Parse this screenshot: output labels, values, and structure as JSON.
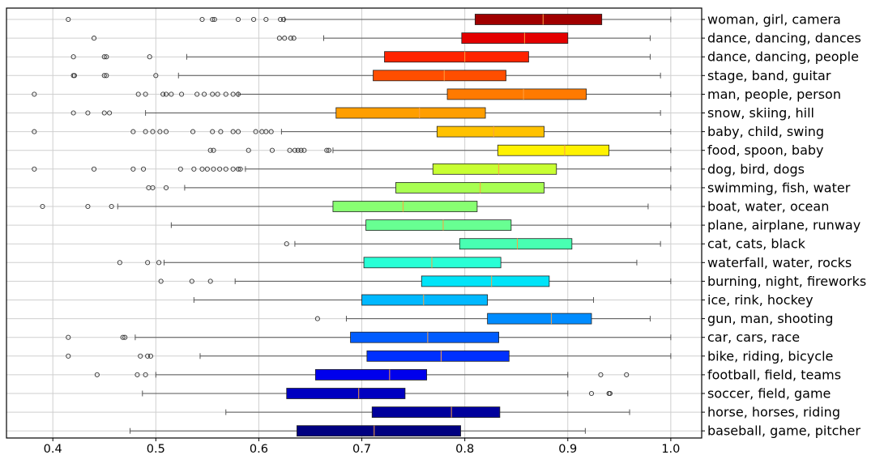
{
  "chart_data": {
    "type": "boxplot",
    "orientation": "horizontal",
    "xlim": [
      0.355,
      1.03
    ],
    "x_ticks": [
      0.4,
      0.5,
      0.6,
      0.7,
      0.8,
      0.9,
      1.0
    ],
    "x_tick_labels": [
      "0.4",
      "0.5",
      "0.6",
      "0.7",
      "0.8",
      "0.9",
      "1.0"
    ],
    "grid": true,
    "category_axis_side": "right",
    "categories": [
      "woman, girl, camera",
      "dance, dancing, dances",
      "dance, dancing, people",
      "stage, band, guitar",
      "man, people, person",
      "snow, skiing, hill",
      "baby, child, swing",
      "food, spoon, baby",
      "dog, bird, dogs",
      "swimming, fish, water",
      "boat, water, ocean",
      "plane, airplane, runway",
      "cat, cats, black",
      "waterfall, water, rocks",
      "burning, night, fireworks",
      "ice, rink, hockey",
      "gun, man, shooting",
      "car, cars, race",
      "bike, riding, bicycle",
      "football, field, teams",
      "soccer, field, game",
      "horse, horses, riding",
      "baseball, game, pitcher"
    ],
    "series": [
      {
        "whislo": 0.625,
        "q1": 0.81,
        "med": 0.876,
        "q3": 0.933,
        "whishi": 1.0,
        "color": "#a00000",
        "fliers": [
          0.415,
          0.545,
          0.555,
          0.557,
          0.58,
          0.595,
          0.607,
          0.621,
          0.624
        ]
      },
      {
        "whislo": 0.663,
        "q1": 0.797,
        "med": 0.858,
        "q3": 0.9,
        "whishi": 0.98,
        "color": "#e30000",
        "fliers": [
          0.44,
          0.62,
          0.625,
          0.631,
          0.634
        ]
      },
      {
        "whislo": 0.53,
        "q1": 0.722,
        "med": 0.8,
        "q3": 0.862,
        "whishi": 0.98,
        "color": "#ff2400",
        "fliers": [
          0.42,
          0.45,
          0.452,
          0.494
        ]
      },
      {
        "whislo": 0.522,
        "q1": 0.711,
        "med": 0.78,
        "q3": 0.84,
        "whishi": 0.99,
        "color": "#ff4e00",
        "fliers": [
          0.42,
          0.421,
          0.45,
          0.452,
          0.5
        ]
      },
      {
        "whislo": 0.58,
        "q1": 0.783,
        "med": 0.857,
        "q3": 0.918,
        "whishi": 1.0,
        "color": "#ff7a00",
        "fliers": [
          0.382,
          0.483,
          0.49,
          0.507,
          0.51,
          0.515,
          0.525,
          0.54,
          0.547,
          0.555,
          0.56,
          0.568,
          0.575,
          0.58
        ]
      },
      {
        "whislo": 0.49,
        "q1": 0.675,
        "med": 0.756,
        "q3": 0.82,
        "whishi": 0.99,
        "color": "#ff9e00",
        "fliers": [
          0.42,
          0.434,
          0.45,
          0.455
        ]
      },
      {
        "whislo": 0.622,
        "q1": 0.773,
        "med": 0.828,
        "q3": 0.877,
        "whishi": 1.0,
        "color": "#ffc200",
        "fliers": [
          0.382,
          0.478,
          0.49,
          0.497,
          0.504,
          0.51,
          0.536,
          0.555,
          0.563,
          0.575,
          0.58,
          0.597,
          0.603,
          0.607,
          0.612
        ]
      },
      {
        "whislo": 0.672,
        "q1": 0.832,
        "med": 0.897,
        "q3": 0.94,
        "whishi": 1.0,
        "color": "#fff200",
        "fliers": [
          0.553,
          0.556,
          0.59,
          0.613,
          0.63,
          0.635,
          0.638,
          0.641,
          0.644,
          0.666,
          0.668
        ]
      },
      {
        "whislo": 0.587,
        "q1": 0.769,
        "med": 0.833,
        "q3": 0.889,
        "whishi": 1.0,
        "color": "#c8ff32",
        "fliers": [
          0.382,
          0.44,
          0.478,
          0.488,
          0.524,
          0.537,
          0.545,
          0.55,
          0.556,
          0.562,
          0.568,
          0.575,
          0.58,
          0.582
        ]
      },
      {
        "whislo": 0.528,
        "q1": 0.733,
        "med": 0.815,
        "q3": 0.877,
        "whishi": 1.0,
        "color": "#a8ff52",
        "fliers": [
          0.493,
          0.497,
          0.51
        ]
      },
      {
        "whislo": 0.463,
        "q1": 0.672,
        "med": 0.74,
        "q3": 0.812,
        "whishi": 0.978,
        "color": "#88ff72",
        "fliers": [
          0.39,
          0.434,
          0.457
        ]
      },
      {
        "whislo": 0.515,
        "q1": 0.704,
        "med": 0.779,
        "q3": 0.845,
        "whishi": 1.0,
        "color": "#68ff92",
        "fliers": []
      },
      {
        "whislo": 0.635,
        "q1": 0.795,
        "med": 0.851,
        "q3": 0.904,
        "whishi": 0.99,
        "color": "#48ffb2",
        "fliers": [
          0.627
        ]
      },
      {
        "whislo": 0.508,
        "q1": 0.702,
        "med": 0.768,
        "q3": 0.835,
        "whishi": 0.967,
        "color": "#28ffd6",
        "fliers": [
          0.465,
          0.492,
          0.503
        ]
      },
      {
        "whislo": 0.577,
        "q1": 0.758,
        "med": 0.826,
        "q3": 0.882,
        "whishi": 1.0,
        "color": "#00e4f8",
        "fliers": [
          0.505,
          0.535,
          0.553
        ]
      },
      {
        "whislo": 0.537,
        "q1": 0.7,
        "med": 0.76,
        "q3": 0.822,
        "whishi": 0.925,
        "color": "#00b8ff",
        "fliers": []
      },
      {
        "whislo": 0.685,
        "q1": 0.822,
        "med": 0.884,
        "q3": 0.923,
        "whishi": 0.98,
        "color": "#008cff",
        "fliers": [
          0.657
        ]
      },
      {
        "whislo": 0.48,
        "q1": 0.689,
        "med": 0.764,
        "q3": 0.833,
        "whishi": 1.0,
        "color": "#005cff",
        "fliers": [
          0.415,
          0.468,
          0.47
        ]
      },
      {
        "whislo": 0.543,
        "q1": 0.705,
        "med": 0.777,
        "q3": 0.843,
        "whishi": 1.0,
        "color": "#0030ff",
        "fliers": [
          0.415,
          0.485,
          0.492,
          0.495
        ]
      },
      {
        "whislo": 0.5,
        "q1": 0.655,
        "med": 0.727,
        "q3": 0.763,
        "whishi": 0.9,
        "color": "#0000ec",
        "fliers": [
          0.443,
          0.482,
          0.49,
          0.932,
          0.957
        ]
      },
      {
        "whislo": 0.487,
        "q1": 0.627,
        "med": 0.697,
        "q3": 0.742,
        "whishi": 0.9,
        "color": "#0000c0",
        "fliers": [
          0.923,
          0.94,
          0.941
        ]
      },
      {
        "whislo": 0.568,
        "q1": 0.71,
        "med": 0.787,
        "q3": 0.834,
        "whishi": 0.96,
        "color": "#00009c",
        "fliers": []
      },
      {
        "whislo": 0.475,
        "q1": 0.637,
        "med": 0.712,
        "q3": 0.796,
        "whishi": 0.917,
        "color": "#000080",
        "fliers": []
      }
    ],
    "median_color": "#ffa040",
    "whisker_color": "#555555",
    "flier_color": "#333333",
    "grid_color": "#cfcfcf"
  }
}
